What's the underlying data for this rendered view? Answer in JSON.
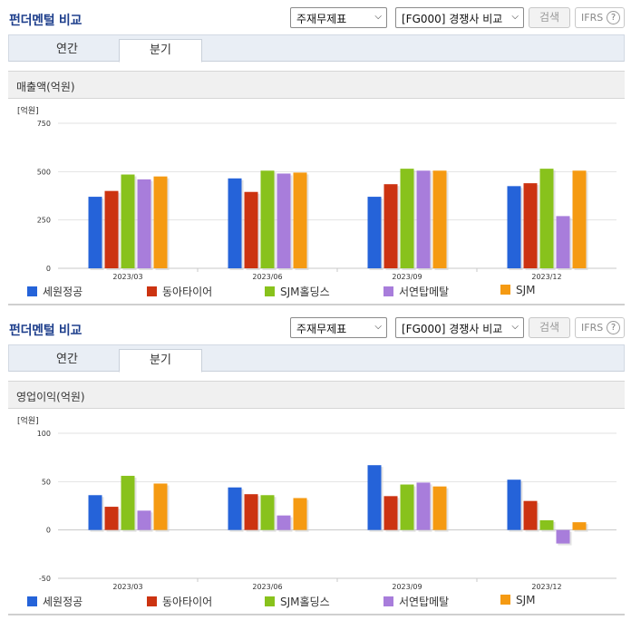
{
  "panels": [
    {
      "title": "펀더멘털 비교",
      "select_statement": "주재무제표",
      "select_compare": "[FG000] 경쟁사 비교",
      "search_label": "검색",
      "ifrs_label": "IFRS",
      "help_label": "?",
      "tabs": [
        "연간",
        "분기"
      ],
      "active_tab": "분기",
      "chart_title": "매출액(억원)",
      "chart_data": {
        "type": "bar",
        "unit_label": "[억원]",
        "categories": [
          "2023/03",
          "2023/06",
          "2023/09",
          "2023/12"
        ],
        "ylim": [
          0,
          750
        ],
        "yticks": [
          0,
          250,
          500,
          750
        ],
        "series": [
          {
            "name": "세원정공",
            "color": "#2563d9",
            "values": [
              370,
              465,
              370,
              425
            ]
          },
          {
            "name": "동아타이어",
            "color": "#cc3311",
            "values": [
              400,
              395,
              435,
              440
            ]
          },
          {
            "name": "SJM홀딩스",
            "color": "#88c21c",
            "values": [
              485,
              505,
              515,
              515
            ]
          },
          {
            "name": "서연탑메탈",
            "color": "#a87ddb",
            "values": [
              460,
              490,
              505,
              270
            ]
          },
          {
            "name": "SJM",
            "color": "#f59a12",
            "values": [
              475,
              495,
              505,
              505
            ]
          }
        ]
      }
    },
    {
      "title": "펀더멘털 비교",
      "select_statement": "주재무제표",
      "select_compare": "[FG000] 경쟁사 비교",
      "search_label": "검색",
      "ifrs_label": "IFRS",
      "help_label": "?",
      "tabs": [
        "연간",
        "분기"
      ],
      "active_tab": "분기",
      "chart_title": "영업이익(억원)",
      "chart_data": {
        "type": "bar",
        "unit_label": "[억원]",
        "categories": [
          "2023/03",
          "2023/06",
          "2023/09",
          "2023/12"
        ],
        "ylim": [
          -50,
          100
        ],
        "yticks": [
          -50,
          0,
          50,
          100
        ],
        "series": [
          {
            "name": "세원정공",
            "color": "#2563d9",
            "values": [
              36,
              44,
              67,
              52
            ]
          },
          {
            "name": "동아타이어",
            "color": "#cc3311",
            "values": [
              24,
              37,
              35,
              30
            ]
          },
          {
            "name": "SJM홀딩스",
            "color": "#88c21c",
            "values": [
              56,
              36,
              47,
              10
            ]
          },
          {
            "name": "서연탑메탈",
            "color": "#a87ddb",
            "values": [
              20,
              15,
              49,
              -14
            ]
          },
          {
            "name": "SJM",
            "color": "#f59a12",
            "values": [
              48,
              33,
              45,
              8
            ]
          }
        ]
      }
    }
  ]
}
